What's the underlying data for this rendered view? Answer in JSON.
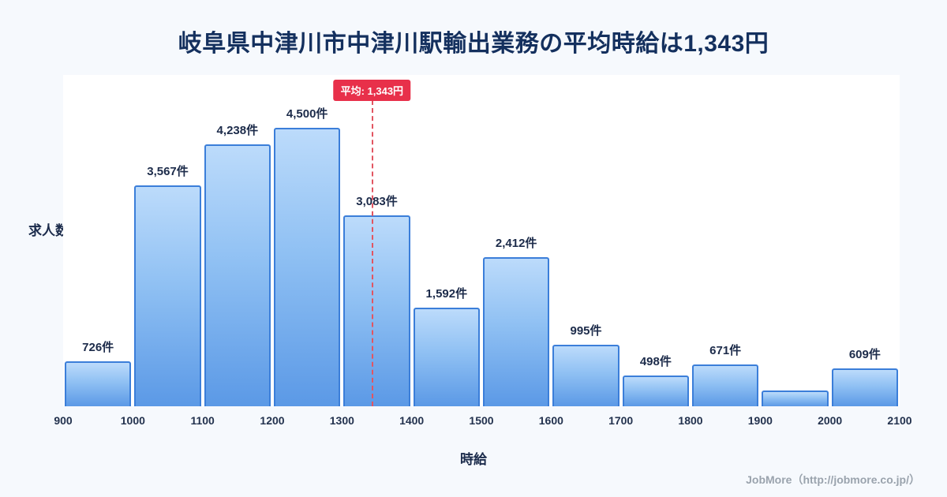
{
  "page": {
    "title": "岐阜県中津川市中津川駅輸出業務の平均時給は1,343円",
    "footer": "JobMore（http://jobmore.co.jp/）"
  },
  "chart_data": {
    "type": "bar",
    "title": "岐阜県中津川市中津川駅輸出業務の平均時給は1,343円",
    "xlabel": "時給",
    "ylabel": "求人数",
    "ylim": [
      0,
      4500
    ],
    "x_range": [
      900,
      2100
    ],
    "bin_width": 100,
    "grid": false,
    "legend": "none",
    "categories": [
      "900-1000",
      "1000-1100",
      "1100-1200",
      "1200-1300",
      "1300-1400",
      "1400-1500",
      "1500-1600",
      "1600-1700",
      "1700-1800",
      "1800-1900",
      "1900-2000",
      "2000-2100"
    ],
    "values": [
      726,
      3567,
      4238,
      4500,
      3083,
      1592,
      2412,
      995,
      498,
      671,
      250,
      609
    ],
    "value_labels": [
      "726件",
      "3,567件",
      "4,238件",
      "4,500件",
      "3,083件",
      "1,592件",
      "2,412件",
      "995件",
      "498件",
      "671件",
      "",
      "609件"
    ],
    "x_ticks": [
      "900",
      "1000",
      "1100",
      "1200",
      "1300",
      "1400",
      "1500",
      "1600",
      "1700",
      "1800",
      "1900",
      "2000",
      "2100"
    ],
    "average": {
      "value": 1343,
      "label": "平均: 1,343円"
    },
    "colors": {
      "background": "#f6f9fd",
      "plot_background": "#ffffff",
      "bar_gradient_top": "#bcdbfb",
      "bar_gradient_bottom": "#5b99e6",
      "bar_border": "#3b7ed9",
      "average_line": "#e25561",
      "average_badge_bg": "#e8304a",
      "title_color": "#14305e",
      "label_color": "#1c2b4a",
      "footer_color": "#9aa3ad"
    }
  }
}
